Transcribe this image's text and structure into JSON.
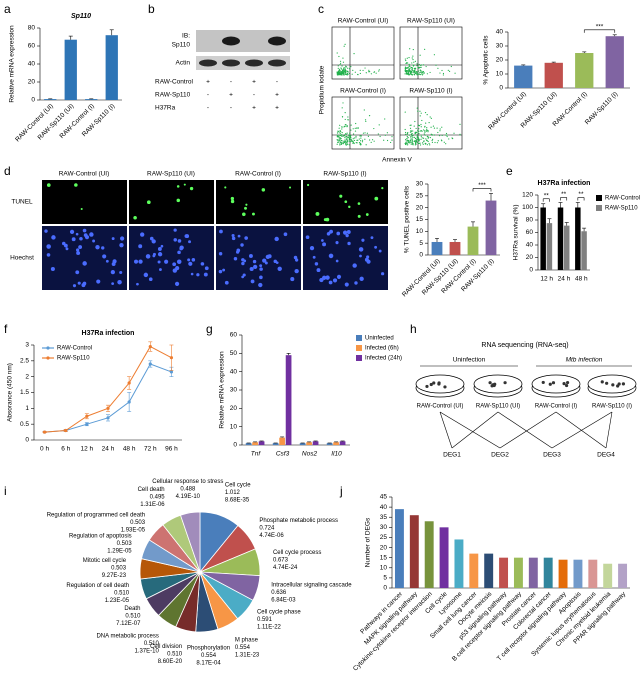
{
  "panel_labels": [
    "a",
    "b",
    "c",
    "d",
    "e",
    "f",
    "g",
    "h",
    "i",
    "j"
  ],
  "blot": {
    "target_label": [
      "IB:",
      "Sp110"
    ],
    "control_label": "Actin",
    "rows": [
      {
        "name": "RAW-Control",
        "signs": [
          "+",
          "-",
          "+",
          "-"
        ]
      },
      {
        "name": "RAW-Sp110",
        "signs": [
          "-",
          "+",
          "-",
          "+"
        ]
      },
      {
        "name": "H37Ra",
        "signs": [
          "-",
          "-",
          "+",
          "+"
        ]
      }
    ]
  },
  "flow": {
    "titles": [
      "RAW-Control (UI)",
      "RAW-Sp110 (UI)",
      "RAW-Control (I)",
      "RAW-Sp110 (I)"
    ],
    "y_label": "Propidium iodate",
    "x_label": "Annexin V"
  },
  "tunel": {
    "columns": [
      "RAW-Control (UI)",
      "RAW-Sp110 (UI)",
      "RAW-Control (I)",
      "RAW-Sp110 (I)"
    ],
    "rows": [
      "TUNEL",
      "Hoechst"
    ]
  },
  "rnaseq": {
    "title": "RNA sequencing (RNA-seq)",
    "groups": [
      "Uninfection",
      "Mtb infection"
    ],
    "samples": [
      "RAW-Control (UI)",
      "RAW-Sp110 (UI)",
      "RAW-Control (I)",
      "RAW-Sp110 (I)"
    ],
    "outputs": [
      "DEG1",
      "DEG2",
      "DEG3",
      "DEG4"
    ]
  },
  "chart_data": [
    {
      "type": "bar",
      "title": "Sp110",
      "y_label": "Relative mRNA expression",
      "categories": [
        "RAW-Control (UI)",
        "RAW-Sp110 (UI)",
        "RAW-Control (I)",
        "RAW-Sp110 (I)"
      ],
      "values": [
        1,
        67,
        1,
        72
      ],
      "errors": [
        0.3,
        4,
        0.3,
        6
      ],
      "color": "#2e75b6",
      "ylim": [
        0,
        80
      ],
      "yticks": [
        0,
        20,
        40,
        60,
        80
      ]
    },
    {
      "type": "bar",
      "y_label": "% Apoptotic cells",
      "categories": [
        "RAW-Control (UI)",
        "RAW-Sp110 (UI)",
        "RAW-Control (I)",
        "RAW-Sp110 (I)"
      ],
      "values": [
        16,
        18,
        25,
        37
      ],
      "errors": [
        0.5,
        0.5,
        0.8,
        1
      ],
      "colors": [
        "#4a7ebb",
        "#c0504d",
        "#9bbb59",
        "#8064a2"
      ],
      "ylim": [
        0,
        40
      ],
      "yticks": [
        0,
        10,
        20,
        30,
        40
      ],
      "annotation": "***"
    },
    {
      "type": "bar",
      "y_label": "% TUNEL positive cells",
      "categories": [
        "RAW-Control (UI)",
        "RAW-Sp110 (UI)",
        "RAW-Control (I)",
        "RAW-Sp110 (I)"
      ],
      "values": [
        5.5,
        5.5,
        12,
        23
      ],
      "errors": [
        1.5,
        1,
        2,
        3
      ],
      "colors": [
        "#4a7ebb",
        "#c0504d",
        "#9bbb59",
        "#8064a2"
      ],
      "ylim": [
        0,
        30
      ],
      "yticks": [
        0,
        5,
        10,
        15,
        20,
        25,
        30
      ],
      "annotation": "***"
    },
    {
      "type": "bar",
      "title": "H37Ra infection",
      "y_label": "H37Ra survival (%)",
      "categories": [
        "12 h",
        "24 h",
        "48 h"
      ],
      "series": [
        {
          "name": "RAW-Control",
          "color": "#000000",
          "values": [
            100,
            100,
            100
          ],
          "errors": [
            6,
            8,
            8
          ]
        },
        {
          "name": "RAW-Sp110",
          "color": "#808080",
          "values": [
            75,
            71,
            62
          ],
          "errors": [
            7,
            5,
            5
          ]
        }
      ],
      "ylim": [
        0,
        120
      ],
      "yticks": [
        0,
        20,
        40,
        60,
        80,
        100,
        120
      ],
      "annotations": [
        "**",
        "**",
        "**"
      ],
      "legend": "right"
    },
    {
      "type": "line",
      "title": "H37Ra infection",
      "y_label": "Absorance (450 nm)",
      "categories": [
        "0 h",
        "6 h",
        "12 h",
        "24 h",
        "48 h",
        "72 h",
        "96 h"
      ],
      "series": [
        {
          "name": "RAW-Control",
          "color": "#5b9bd5",
          "values": [
            0.25,
            0.3,
            0.5,
            0.7,
            1.2,
            2.4,
            2.15
          ],
          "errors": [
            0.02,
            0.03,
            0.05,
            0.1,
            0.3,
            0.1,
            0.15
          ]
        },
        {
          "name": "RAW-Sp110",
          "color": "#ed7d31",
          "values": [
            0.25,
            0.3,
            0.75,
            1.0,
            1.8,
            2.95,
            2.6
          ],
          "errors": [
            0.02,
            0.03,
            0.08,
            0.1,
            0.2,
            0.15,
            0.4
          ]
        }
      ],
      "ylim": [
        0,
        3
      ],
      "yticks": [
        0,
        0.5,
        1,
        1.5,
        2,
        2.5,
        3
      ],
      "legend": "upper left"
    },
    {
      "type": "bar",
      "y_label": "Relative mRNA expression",
      "categories": [
        "Tnf",
        "Csf3",
        "Nos2",
        "Il10"
      ],
      "series": [
        {
          "name": "Uninfected",
          "color": "#4a7ebb",
          "values": [
            1,
            1,
            1,
            1
          ],
          "errors": [
            0.1,
            0.1,
            0.1,
            0.1
          ]
        },
        {
          "name": "Infected (6h)",
          "color": "#f79646",
          "values": [
            1.5,
            4,
            1.5,
            1.5
          ],
          "errors": [
            0.2,
            0.4,
            0.2,
            0.2
          ]
        },
        {
          "name": "Infected (24h)",
          "color": "#7030a0",
          "values": [
            2,
            49,
            2,
            2
          ],
          "errors": [
            0.2,
            1,
            0.2,
            0.2
          ]
        }
      ],
      "ylim": [
        0,
        60
      ],
      "yticks": [
        0,
        10,
        20,
        30,
        40,
        50,
        60
      ],
      "legend": "right"
    },
    {
      "type": "pie",
      "labels": [
        "Cell cycle",
        "Phosphate metabolic process",
        "Cell cycle process",
        "Intracellular signaling cascade",
        "Cell cycle phase",
        "M phase",
        "Phosphorylation",
        "Cell division",
        "DNA metabolic process",
        "Death",
        "Regulation of cell death",
        "Mitotic cell cycle",
        "Regulation of apoptosis",
        "Regulation of programmed cell death",
        "Cell death",
        "Cellular response to stress"
      ],
      "values": [
        1.012,
        0.724,
        0.673,
        0.636,
        0.591,
        0.554,
        0.554,
        0.51,
        0.51,
        0.51,
        0.51,
        0.503,
        0.503,
        0.503,
        0.495,
        0.488
      ],
      "value_labels": [
        "1.012",
        "0.724",
        "0.673",
        "0.636",
        "0.591",
        "0.554",
        "0.554",
        "0.510",
        "0.510",
        "0.510",
        "0.510",
        "0.503",
        "0.503",
        "0.503",
        "0.495",
        "0.488"
      ],
      "pvalues": [
        "8.68E-35",
        "4.74E-06",
        "4.74E-24",
        "6.84E-03",
        "1.11E-22",
        "1.31E-23",
        "8.17E-04",
        "8.60E-20",
        "1.37E-10",
        "7.12E-07",
        "1.23E-05",
        "9.27E-23",
        "1.29E-05",
        "1.93E-05",
        "1.31E-06",
        "4.19E-10"
      ],
      "colors": [
        "#4a7ebb",
        "#c0504d",
        "#9bbb59",
        "#8064a2",
        "#4bacc6",
        "#f79646",
        "#2c4d75",
        "#772c2a",
        "#5f7530",
        "#4d3b62",
        "#276a7c",
        "#b65708",
        "#729aca",
        "#cd7371",
        "#afc97a",
        "#a18cbb"
      ]
    },
    {
      "type": "bar",
      "y_label": "Number of DEGs",
      "categories": [
        "Pathways in cancer",
        "MAPK signaling pathway",
        "Cytokine-cytokine receptor interaction",
        "Cell cycle",
        "Lysosome",
        "Small cell lung cancer",
        "Oocyte meiosis",
        "p53 signaling pathway",
        "B cell receptor signaling pathway",
        "Prostate cancer",
        "Colorectal cancer",
        "T cell receptor signaling pathway",
        "Apoptosis",
        "Systemic lupus erythematosus",
        "Chronic myeloid leukemia",
        "PPAR signaling pathway"
      ],
      "values": [
        39,
        36,
        33,
        30,
        24,
        17,
        17,
        15,
        15,
        15,
        15,
        14,
        14,
        14,
        12,
        12
      ],
      "colors": [
        "#4a7ebb",
        "#953735",
        "#77933c",
        "#7030a0",
        "#4bacc6",
        "#f79646",
        "#2c4d75",
        "#c0504d",
        "#9bbb59",
        "#8064a2",
        "#31859c",
        "#e46c0a",
        "#729aca",
        "#d99694",
        "#c3d69b",
        "#b3a2c7"
      ],
      "ylim": [
        0,
        45
      ],
      "yticks": [
        0,
        5,
        10,
        15,
        20,
        25,
        30,
        35,
        40,
        45
      ]
    }
  ]
}
